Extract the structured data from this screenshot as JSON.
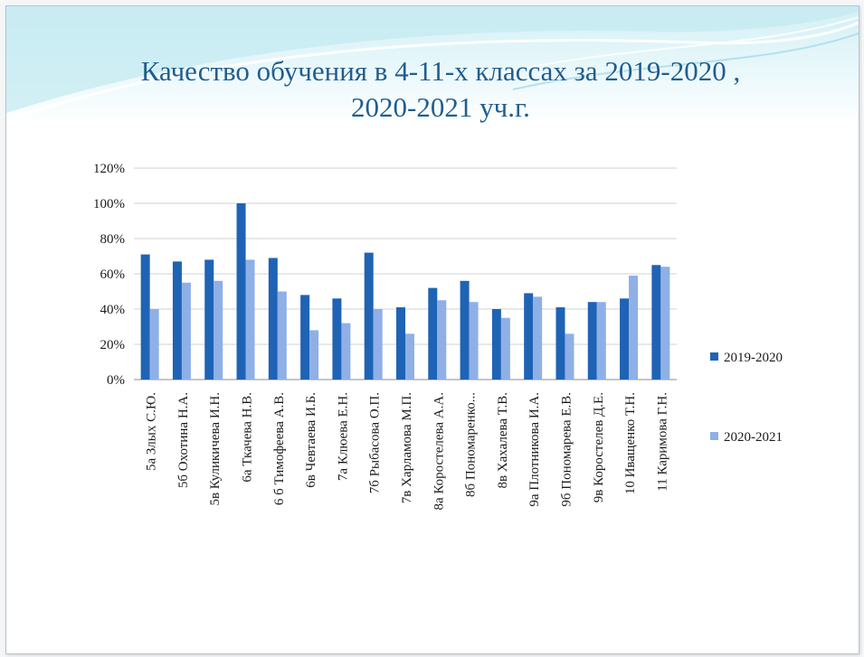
{
  "slide": {
    "title_line1": "Качество обучения в 4-11-х классах за   2019-2020  ,",
    "title_line2": "2020-2021  уч.г."
  },
  "colors": {
    "series_2019": "#1f63b5",
    "series_2020": "#8fb0e6",
    "grid": "#d0d0d0",
    "title": "#1f5e8e"
  },
  "chart_data": {
    "type": "bar",
    "categories": [
      "5а Злых С.Ю.",
      "5б Охотина Н.А.",
      "5в Куликичева И.Н.",
      "6а Ткачева Н.В.",
      "6 б Тимофеева А.В.",
      "6в Чевтаева И.Б.",
      "7а Клюева Е.Н.",
      "7б Рыбасова О.П.",
      "7в Харламова М.П.",
      "8а Коростелева А.А.",
      "8б Пономаренко...",
      "8в Хахалева Т.В.",
      "9а Плотникова И.А.",
      "9б  Пономарева Е.В.",
      "9в Коростелев Д.Е.",
      "10 Иващенко Т.Н.",
      "11  Каримова Г.Н."
    ],
    "series": [
      {
        "name": "2019-2020",
        "values": [
          71,
          67,
          68,
          100,
          69,
          48,
          46,
          72,
          41,
          52,
          56,
          40,
          49,
          41,
          44,
          46,
          65
        ]
      },
      {
        "name": "2020-2021",
        "values": [
          40,
          55,
          56,
          68,
          50,
          28,
          32,
          40,
          26,
          45,
          44,
          35,
          47,
          26,
          44,
          59,
          64
        ]
      }
    ],
    "yticks": [
      "0%",
      "20%",
      "40%",
      "60%",
      "80%",
      "100%",
      "120%"
    ],
    "ylim": [
      0,
      120
    ],
    "grid": true,
    "legend_position": "right"
  }
}
